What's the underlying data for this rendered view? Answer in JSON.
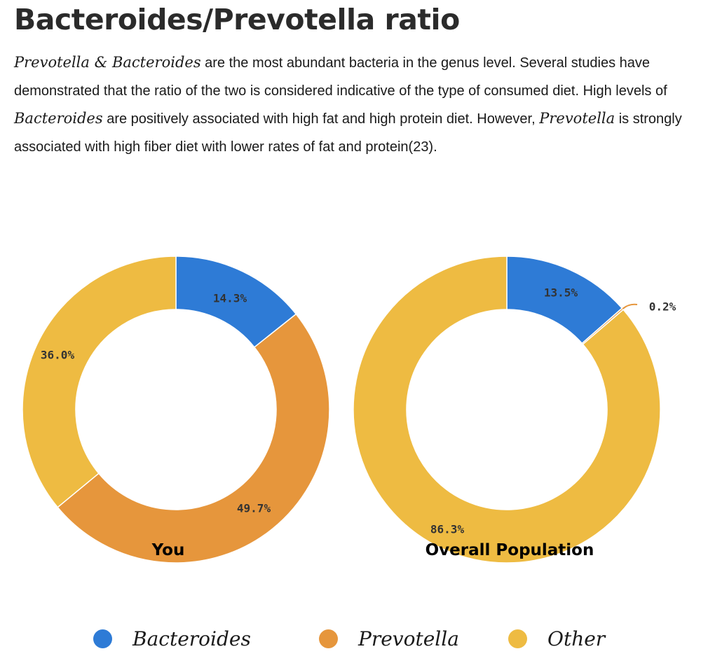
{
  "title": "Bacteroides/Prevotella ratio",
  "description": {
    "s1_italic": "Prevotella & Bacteroides",
    "s2": " are the most abundant bacteria in the genus level. Several studies have demonstrated that the ratio of the two is considered indicative of the type of consumed diet. High levels of ",
    "s3_italic": "Bacteroides",
    "s4": " are positively associated with high fat and high protein diet. However, ",
    "s5_italic": "Prevotella",
    "s6": " is strongly associated with high fiber diet with lower rates of fat and protein(23)."
  },
  "colors": {
    "Bacteroides": "#2e7bd6",
    "Prevotella": "#e6963c",
    "Other": "#eebb42"
  },
  "chart_data": [
    {
      "type": "pie",
      "variant": "donut",
      "title": "You",
      "categories": [
        "Bacteroides",
        "Prevotella",
        "Other"
      ],
      "values": [
        14.3,
        49.7,
        36.0
      ],
      "labels": [
        "14.3%",
        "49.7%",
        "36.0%"
      ]
    },
    {
      "type": "pie",
      "variant": "donut",
      "title": "Overall Population",
      "categories": [
        "Bacteroides",
        "Prevotella",
        "Other"
      ],
      "values": [
        13.5,
        0.2,
        86.3
      ],
      "labels": [
        "13.5%",
        "0.2%",
        "86.3%"
      ]
    }
  ],
  "legend": {
    "placement": "bottom",
    "items": [
      "Bacteroides",
      "Prevotella",
      "Other"
    ]
  }
}
